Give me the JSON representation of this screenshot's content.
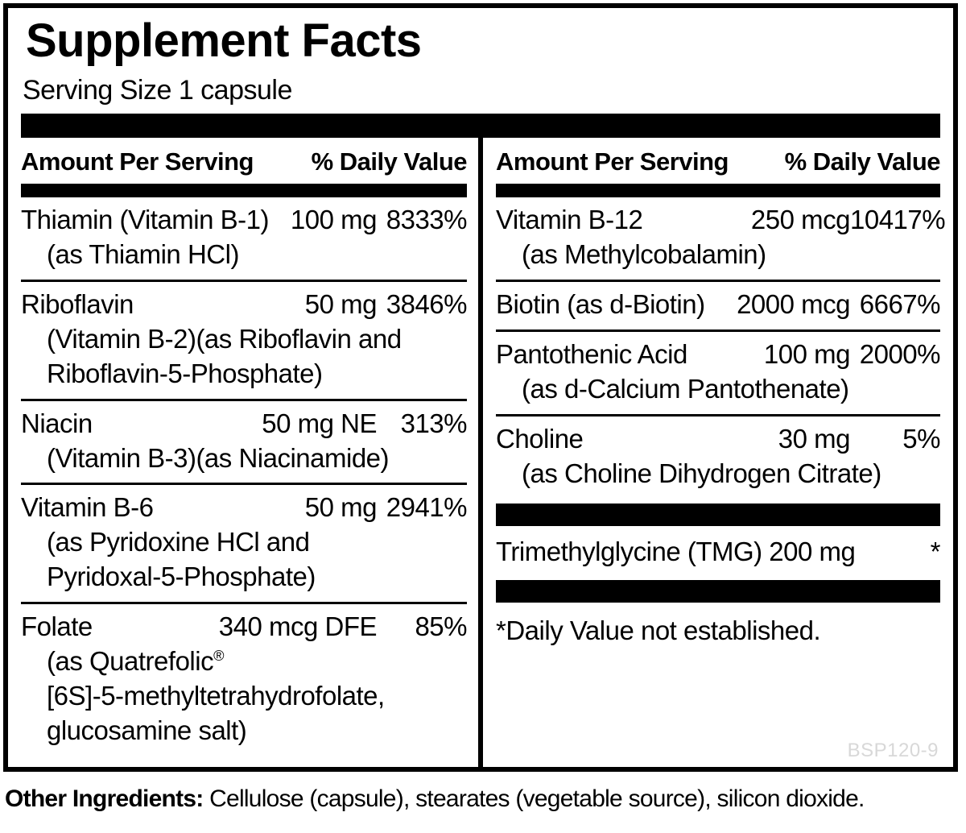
{
  "panel": {
    "title": "Supplement Facts",
    "serving_size": "Serving Size 1 capsule"
  },
  "table_header": {
    "amount": "Amount Per Serving",
    "daily_value": "% Daily Value"
  },
  "left_rows": [
    {
      "name": "Thiamin (Vitamin B-1)",
      "amount": "100 mg",
      "dv": "8333%",
      "sub": [
        "(as Thiamin HCl)"
      ]
    },
    {
      "name": "Riboflavin",
      "amount": "50 mg",
      "dv": "3846%",
      "sub": [
        "(Vitamin B-2)(as Riboflavin and",
        "Riboflavin-5-Phosphate)"
      ]
    },
    {
      "name": "Niacin",
      "amount": "50 mg NE",
      "dv": "313%",
      "sub": [
        "(Vitamin B-3)(as Niacinamide)"
      ]
    },
    {
      "name": "Vitamin B-6",
      "amount": "50 mg",
      "dv": "2941%",
      "sub": [
        "(as Pyridoxine HCl and",
        "Pyridoxal-5-Phosphate)"
      ]
    },
    {
      "name": "Folate",
      "amount": "340 mcg DFE",
      "dv": "85%",
      "sub": [
        "(as Quatrefolic®",
        "[6S]-5-methyltetrahydrofolate,",
        "glucosamine salt)"
      ]
    }
  ],
  "right_rows": [
    {
      "name": "Vitamin B-12",
      "amount": "250 mcg",
      "dv": "10417%",
      "sub": [
        "(as Methylcobalamin)"
      ]
    },
    {
      "name": "Biotin (as d-Biotin)",
      "amount": "2000 mcg",
      "dv": "6667%",
      "sub": []
    },
    {
      "name": "Pantothenic Acid",
      "amount": "100 mg",
      "dv": "2000%",
      "sub": [
        "(as d-Calcium Pantothenate)"
      ]
    },
    {
      "name": "Choline",
      "amount": "30 mg",
      "dv": "5%",
      "sub": [
        "(as Choline Dihydrogen Citrate)"
      ]
    }
  ],
  "extras": {
    "tmg_text": "Trimethylglycine (TMG) 200 mg",
    "tmg_dv": "*",
    "footnote": "*Daily Value not established.",
    "product_code": "BSP120-9"
  },
  "footer": {
    "label": "Other Ingredients:",
    "text": " Cellulose (capsule), stearates (vegetable source), silicon dioxide."
  },
  "colors": {
    "ink": "#000000",
    "product_code_gray": "#d8d8d8"
  }
}
